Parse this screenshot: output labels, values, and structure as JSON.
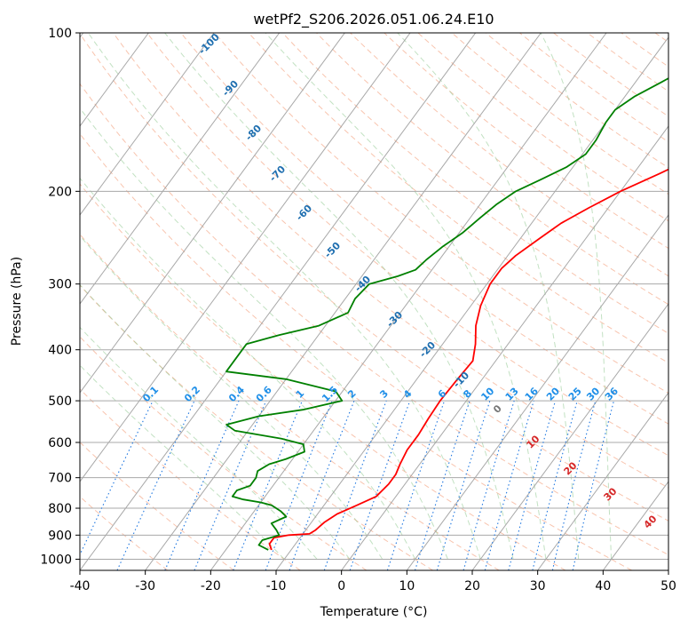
{
  "chart_data": {
    "type": "line",
    "title": "wetPf2_S206.2026.051.06.24.E10",
    "xlabel": "Temperature (°C)",
    "ylabel": "Pressure (hPa)",
    "xlim": [
      -40,
      50
    ],
    "ylim": [
      1050,
      100
    ],
    "y_scale": "log",
    "grid": true,
    "x_ticks": [
      -40,
      -30,
      -20,
      -10,
      0,
      10,
      20,
      30,
      40,
      50
    ],
    "y_ticks": [
      100,
      200,
      300,
      400,
      500,
      600,
      700,
      800,
      900,
      1000
    ],
    "series": [
      {
        "color": "#ff0000",
        "points": [
          [
            -13,
            960
          ],
          [
            -14,
            935
          ],
          [
            -14,
            910
          ],
          [
            -12,
            900
          ],
          [
            -9,
            895
          ],
          [
            -8.5,
            880
          ],
          [
            -8,
            850
          ],
          [
            -7,
            820
          ],
          [
            -5,
            790
          ],
          [
            -3,
            760
          ],
          [
            -2.5,
            720
          ],
          [
            -2.5,
            690
          ],
          [
            -3,
            660
          ],
          [
            -3.5,
            620
          ],
          [
            -3.5,
            580
          ],
          [
            -3.8,
            540
          ],
          [
            -4,
            500
          ],
          [
            -3.8,
            460
          ],
          [
            -3.5,
            420
          ],
          [
            -5,
            390
          ],
          [
            -7,
            360
          ],
          [
            -8.5,
            330
          ],
          [
            -9.5,
            300
          ],
          [
            -9.5,
            280
          ],
          [
            -8.8,
            265
          ],
          [
            -7,
            245
          ],
          [
            -5.5,
            230
          ],
          [
            -3,
            215
          ],
          [
            0,
            200
          ],
          [
            4,
            185
          ],
          [
            8,
            170
          ],
          [
            12,
            155
          ],
          [
            16.5,
            140
          ],
          [
            20.5,
            128
          ],
          [
            23,
            120
          ],
          [
            25,
            112
          ],
          [
            28,
            106
          ],
          [
            30,
            100
          ]
        ]
      },
      {
        "color": "#008000",
        "points": [
          [
            -13.5,
            960
          ],
          [
            -15.5,
            940
          ],
          [
            -15.5,
            920
          ],
          [
            -13.5,
            900
          ],
          [
            -14.5,
            880
          ],
          [
            -16,
            855
          ],
          [
            -14.5,
            830
          ],
          [
            -16,
            810
          ],
          [
            -18,
            790
          ],
          [
            -20,
            780
          ],
          [
            -23,
            770
          ],
          [
            -25,
            760
          ],
          [
            -25,
            740
          ],
          [
            -23.5,
            725
          ],
          [
            -23.5,
            700
          ],
          [
            -24,
            680
          ],
          [
            -23,
            660
          ],
          [
            -21,
            645
          ],
          [
            -19,
            625
          ],
          [
            -20,
            605
          ],
          [
            -24,
            590
          ],
          [
            -32,
            570
          ],
          [
            -34,
            555
          ],
          [
            -30,
            535
          ],
          [
            -24,
            520
          ],
          [
            -19,
            500
          ],
          [
            -21,
            480
          ],
          [
            -30,
            455
          ],
          [
            -40,
            440
          ],
          [
            -40,
            390
          ],
          [
            -36,
            375
          ],
          [
            -31,
            360
          ],
          [
            -28,
            340
          ],
          [
            -28.5,
            320
          ],
          [
            -28,
            300
          ],
          [
            -24.5,
            290
          ],
          [
            -22.5,
            282
          ],
          [
            -22,
            270
          ],
          [
            -21,
            255
          ],
          [
            -19.5,
            240
          ],
          [
            -18.5,
            225
          ],
          [
            -17.5,
            212
          ],
          [
            -16,
            200
          ],
          [
            -13.5,
            190
          ],
          [
            -11,
            180
          ],
          [
            -9.5,
            170
          ],
          [
            -9.5,
            160
          ],
          [
            -10,
            148
          ],
          [
            -10,
            140
          ],
          [
            -8.5,
            132
          ],
          [
            -6,
            124
          ],
          [
            -3.5,
            116
          ],
          [
            -1.5,
            108
          ],
          [
            0,
            100
          ]
        ]
      }
    ],
    "isotherm_labels": [
      "-100",
      "-90",
      "-80",
      "-70",
      "-60",
      "-50",
      "-40",
      "-30",
      "-20",
      "-10"
    ],
    "mixing_ratio_labels": [
      "0.1",
      "0.2",
      "0.4",
      "0.6",
      "1",
      "1.5",
      "2",
      "3",
      "4",
      "6",
      "8",
      "10",
      "13",
      "16",
      "20",
      "25",
      "30",
      "36"
    ],
    "moist_adiabat_labels": [
      "0",
      "10",
      "20",
      "30",
      "40"
    ]
  }
}
